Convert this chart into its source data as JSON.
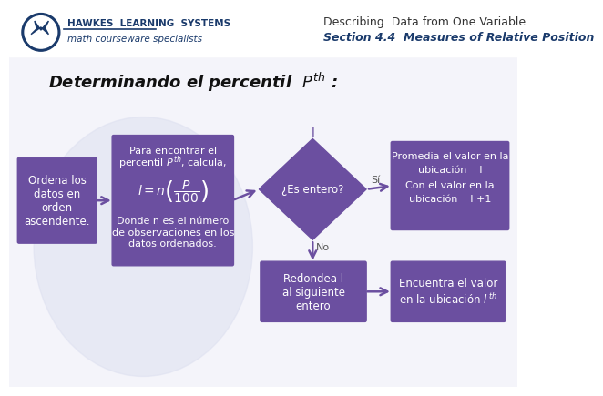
{
  "bg_color": "#f4f4fa",
  "box_color": "#6b4fa0",
  "box_text_color": "#ffffff",
  "title_text": "Determinando el percentil  $P^{th}$ :",
  "header_title": "Describing  Data from One Variable",
  "header_subtitle": "Section 4.4  Measures of Relative Position",
  "hawkes_text": "HAWKES  LEARNING  SYSTEMS",
  "hawkes_sub": "math courseware specialists",
  "box1_text": "Ordena los\ndatos en\norden\nascendente.",
  "diamond_text": "¿Es entero?",
  "si_label": "Sí",
  "no_label": "No",
  "box4_text": "Redondea l\nal siguiente\nentero",
  "header_bg": "#ffffff",
  "header_line_color": "#cccccc",
  "logo_outer_color": "#1a3a6b",
  "logo_inner_color": "#ffffff",
  "header_text_color": "#1a3a6b",
  "header_desc_color": "#333333",
  "title_color": "#111111",
  "label_color": "#555555",
  "watermark_color": "#dde0f0"
}
